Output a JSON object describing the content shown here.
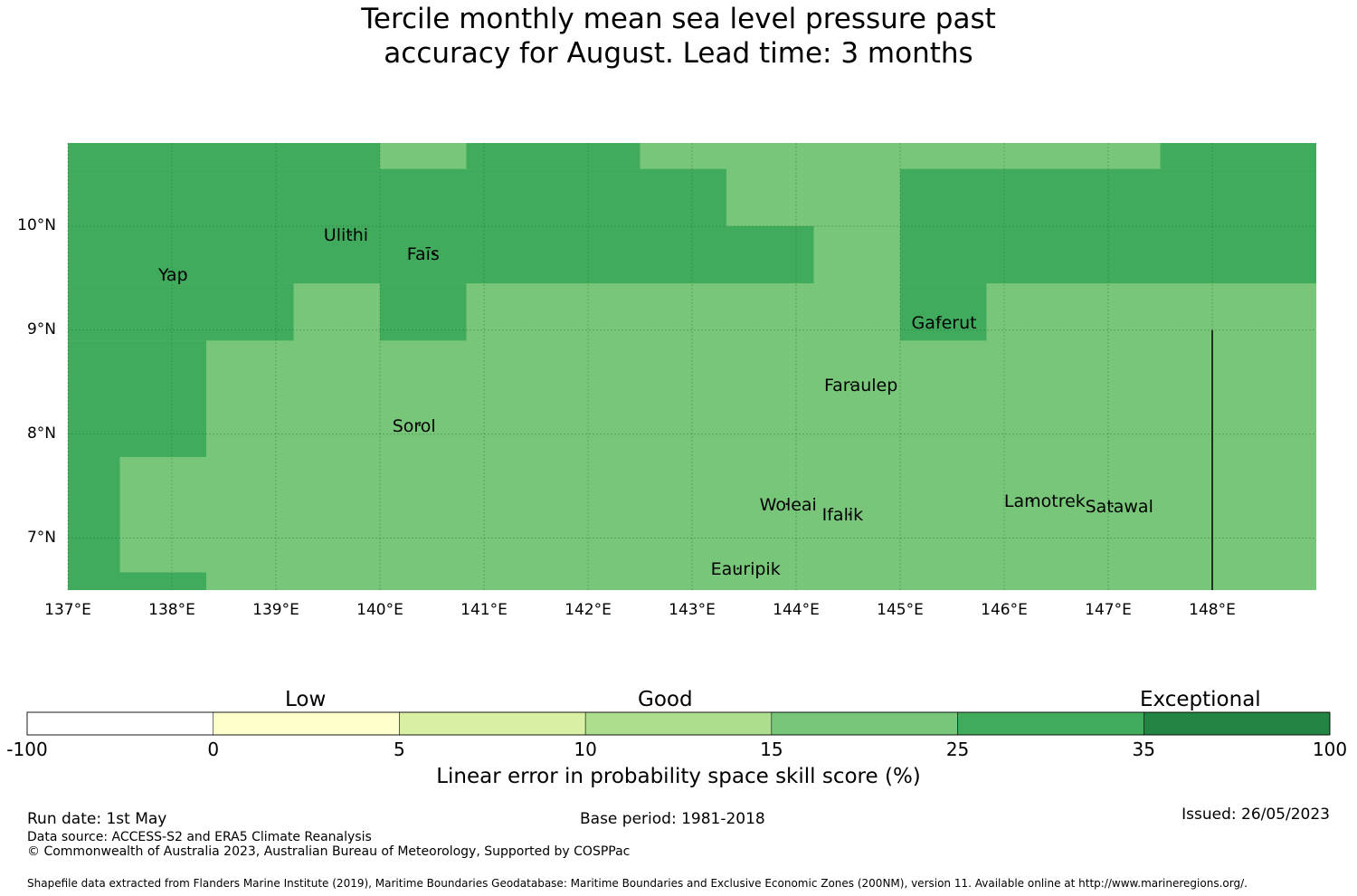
{
  "title_line1": "Tercile monthly mean sea level pressure past",
  "title_line2": "accuracy for August. Lead time: 3 months",
  "colors": {
    "level_15_25": "#78c679",
    "level_25_35": "#41ab5d",
    "grid": "#1a5e2a",
    "border": "#000000"
  },
  "map": {
    "lon_range": [
      137,
      149
    ],
    "lat_range": [
      6.5,
      10.8
    ],
    "lat_ticks": [
      {
        "value": 10,
        "label": "10°N"
      },
      {
        "value": 9,
        "label": "9°N"
      },
      {
        "value": 8,
        "label": "8°N"
      },
      {
        "value": 7,
        "label": "7°N"
      }
    ],
    "lon_ticks": [
      {
        "value": 137,
        "label": "137°E"
      },
      {
        "value": 138,
        "label": "138°E"
      },
      {
        "value": 139,
        "label": "139°E"
      },
      {
        "value": 140,
        "label": "140°E"
      },
      {
        "value": 141,
        "label": "141°E"
      },
      {
        "value": 142,
        "label": "142°E"
      },
      {
        "value": 143,
        "label": "143°E"
      },
      {
        "value": 144,
        "label": "144°E"
      },
      {
        "value": 145,
        "label": "145°E"
      },
      {
        "value": 146,
        "label": "146°E"
      },
      {
        "value": 147,
        "label": "147°E"
      },
      {
        "value": 148,
        "label": "148°E"
      }
    ],
    "regions_25_35": [
      {
        "lon": [
          137.0,
          140.0
        ],
        "lat": [
          10.55,
          10.8
        ]
      },
      {
        "lon": [
          140.83,
          142.5
        ],
        "lat": [
          10.55,
          10.8
        ]
      },
      {
        "lon": [
          147.5,
          149.0
        ],
        "lat": [
          10.55,
          10.8
        ]
      },
      {
        "lon": [
          137.0,
          143.33
        ],
        "lat": [
          10.0,
          10.55
        ]
      },
      {
        "lon": [
          145.0,
          149.0
        ],
        "lat": [
          10.0,
          10.55
        ]
      },
      {
        "lon": [
          137.0,
          144.17
        ],
        "lat": [
          9.45,
          10.0
        ]
      },
      {
        "lon": [
          145.0,
          149.0
        ],
        "lat": [
          9.45,
          10.0
        ]
      },
      {
        "lon": [
          137.0,
          139.17
        ],
        "lat": [
          8.9,
          9.45
        ]
      },
      {
        "lon": [
          140.0,
          140.83
        ],
        "lat": [
          8.9,
          9.45
        ]
      },
      {
        "lon": [
          145.0,
          145.83
        ],
        "lat": [
          8.9,
          9.45
        ]
      },
      {
        "lon": [
          137.0,
          138.33
        ],
        "lat": [
          7.78,
          8.9
        ]
      },
      {
        "lon": [
          137.0,
          137.5
        ],
        "lat": [
          6.5,
          7.78
        ]
      },
      {
        "lon": [
          137.5,
          138.33
        ],
        "lat": [
          6.5,
          6.67
        ]
      }
    ],
    "boundary_line": {
      "lon": 148.0,
      "lat": [
        6.5,
        9.0
      ]
    },
    "places": [
      {
        "name": "Yap",
        "lon": 138.13,
        "lat": 9.52
      },
      {
        "name": "Ulithi",
        "lon": 139.72,
        "lat": 9.9
      },
      {
        "name": "Faīs",
        "lon": 140.52,
        "lat": 9.72
      },
      {
        "name": "Gaferut",
        "lon": 145.37,
        "lat": 9.06
      },
      {
        "name": "Faraulep",
        "lon": 144.53,
        "lat": 8.46
      },
      {
        "name": "Sorol",
        "lon": 140.38,
        "lat": 8.07
      },
      {
        "name": "Woleai",
        "lon": 143.91,
        "lat": 7.31
      },
      {
        "name": "Ifalik",
        "lon": 144.51,
        "lat": 7.21
      },
      {
        "name": "Lamotrek",
        "lon": 146.26,
        "lat": 7.34
      },
      {
        "name": "Satawal",
        "lon": 147.04,
        "lat": 7.29
      },
      {
        "name": "Eauripik",
        "lon": 143.44,
        "lat": 6.69
      }
    ]
  },
  "colorbar": {
    "categories": {
      "low": "Low",
      "good": "Good",
      "exceptional": "Exceptional"
    },
    "segments": [
      {
        "from": "-100",
        "to": "0",
        "color": "#ffffff"
      },
      {
        "from": "0",
        "to": "5",
        "color": "#ffffcc"
      },
      {
        "from": "5",
        "to": "10",
        "color": "#d9f0a3"
      },
      {
        "from": "10",
        "to": "15",
        "color": "#addd8e"
      },
      {
        "from": "15",
        "to": "25",
        "color": "#78c679"
      },
      {
        "from": "25",
        "to": "35",
        "color": "#41ab5d"
      },
      {
        "from": "35",
        "to": "100",
        "color": "#238443"
      }
    ],
    "ticks": [
      "-100",
      "0",
      "5",
      "10",
      "15",
      "25",
      "35",
      "100"
    ],
    "label": "Linear error in probability space skill score (%)"
  },
  "footer": {
    "run_date": "Run date: 1st May",
    "base_period": "Base period: 1981-2018",
    "issued": "Issued: 26/05/2023",
    "data_source": "Data source: ACCESS-S2 and ERA5 Climate Reanalysis",
    "copyright": "© Commonwealth of Australia 2023, Australian Bureau of Meteorology, Supported by COSPPac",
    "shapefile": "Shapefile data extracted from Flanders Marine Institute (2019), Maritime Boundaries Geodatabase: Maritime Boundaries and Exclusive Economic Zones (200NM), version 11. Available online at http://www.marineregions.org/."
  }
}
